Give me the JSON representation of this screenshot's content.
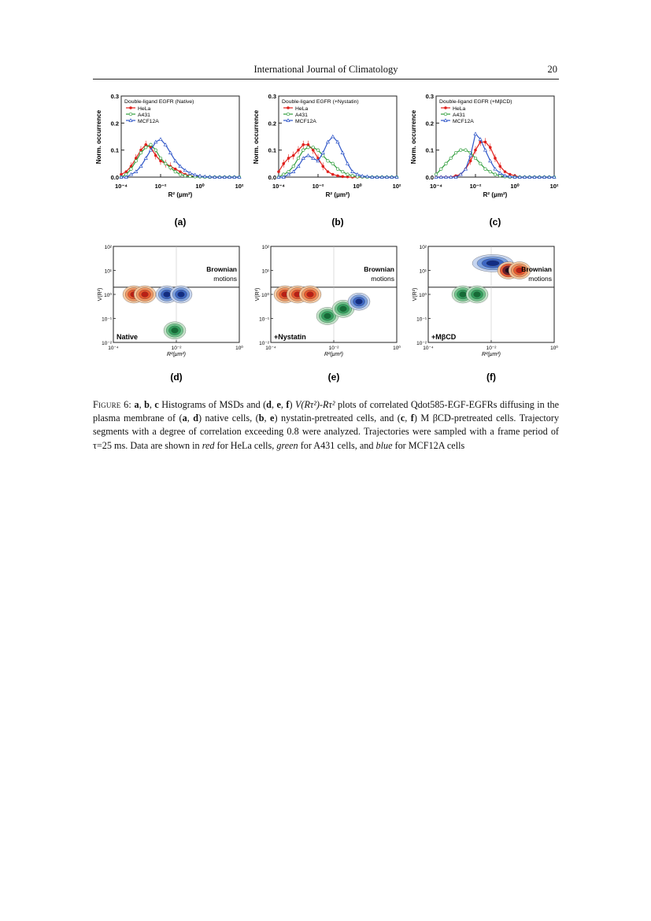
{
  "header": {
    "journal": "International Journal of Climatology",
    "page": "20"
  },
  "hist_panels": [
    {
      "id": "a",
      "label": "(a)",
      "legend_title": "Double-ligand EGFR (Native)"
    },
    {
      "id": "b",
      "label": "(b)",
      "legend_title": "Double-ligand EGFR (+Nystatin)"
    },
    {
      "id": "c",
      "label": "(c)",
      "legend_title": "Double-ligand EGFR (+MβCD)"
    }
  ],
  "hist_common": {
    "ylabel": "Norm. occurrence",
    "xlabel": "R² (μm²)",
    "yticks": [
      "0.0",
      "0.1",
      "0.2",
      "0.3"
    ],
    "xticks": [
      "10⁻⁴",
      "10⁻²",
      "10⁰",
      "10²"
    ],
    "legend": [
      "HeLa",
      "A431",
      "MCF12A"
    ],
    "colors": {
      "HeLa": "#e0201c",
      "A431": "#2e9d3a",
      "MCF12A": "#2f56c8"
    }
  },
  "dens_panels": [
    {
      "id": "d",
      "label": "(d)",
      "condition": "Native"
    },
    {
      "id": "e",
      "label": "(e)",
      "condition": "+Nystatin"
    },
    {
      "id": "f",
      "label": "(f)",
      "condition": "+MβCD"
    }
  ],
  "dens_common": {
    "annotation_line1": "Brownian",
    "annotation_line2": "motions",
    "ylabel": "V(R²)",
    "xlabel": "R²(μm²)",
    "yticks": [
      "10²",
      "10¹",
      "10⁰",
      "10⁻¹",
      "10⁻²"
    ],
    "xticks": [
      "10⁻⁴",
      "10⁻²",
      "10⁰"
    ]
  },
  "chart_data": [
    {
      "type": "line",
      "panel": "a",
      "title": "Double-ligand EGFR (Native)",
      "xlabel": "R² (μm²)",
      "ylabel": "Norm. occurrence",
      "xscale": "log",
      "xlim": [
        0.0001,
        100
      ],
      "ylim": [
        0,
        0.3
      ],
      "legend_position": "top-left",
      "x_log10": [
        -4,
        -3.75,
        -3.5,
        -3.25,
        -3,
        -2.75,
        -2.5,
        -2.25,
        -2,
        -1.75,
        -1.5,
        -1.25,
        -1,
        -0.75,
        -0.5,
        -0.25,
        0,
        0.25,
        0.5,
        0.75,
        1,
        1.25,
        1.5,
        1.75,
        2
      ],
      "series": [
        {
          "name": "HeLa",
          "values": [
            0.01,
            0.02,
            0.04,
            0.07,
            0.1,
            0.12,
            0.11,
            0.08,
            0.06,
            0.05,
            0.04,
            0.03,
            0.02,
            0.01,
            0.005,
            0.003,
            0.002,
            0.001,
            0,
            0,
            0,
            0,
            0,
            0,
            0
          ]
        },
        {
          "name": "A431",
          "values": [
            0.0,
            0.01,
            0.03,
            0.06,
            0.09,
            0.11,
            0.12,
            0.1,
            0.07,
            0.05,
            0.035,
            0.02,
            0.01,
            0.005,
            0.003,
            0.002,
            0.001,
            0,
            0,
            0,
            0,
            0,
            0,
            0,
            0
          ]
        },
        {
          "name": "MCF12A",
          "values": [
            0.0,
            0.0,
            0.01,
            0.02,
            0.04,
            0.07,
            0.1,
            0.13,
            0.14,
            0.12,
            0.09,
            0.06,
            0.04,
            0.025,
            0.015,
            0.008,
            0.004,
            0.002,
            0.001,
            0,
            0,
            0,
            0,
            0,
            0
          ]
        }
      ]
    },
    {
      "type": "line",
      "panel": "b",
      "title": "Double-ligand EGFR (+Nystatin)",
      "xlabel": "R² (μm²)",
      "ylabel": "Norm. occurrence",
      "xscale": "log",
      "xlim": [
        0.0001,
        100
      ],
      "ylim": [
        0,
        0.3
      ],
      "legend_position": "top-left",
      "x_log10": [
        -4,
        -3.75,
        -3.5,
        -3.25,
        -3,
        -2.75,
        -2.5,
        -2.25,
        -2,
        -1.75,
        -1.5,
        -1.25,
        -1,
        -0.75,
        -0.5,
        -0.25,
        0,
        0.25,
        0.5,
        0.75,
        1,
        1.25,
        1.5,
        1.75,
        2
      ],
      "series": [
        {
          "name": "HeLa",
          "values": [
            0.02,
            0.05,
            0.07,
            0.08,
            0.1,
            0.12,
            0.12,
            0.1,
            0.07,
            0.04,
            0.02,
            0.01,
            0.005,
            0.002,
            0.001,
            0,
            0,
            0,
            0,
            0,
            0,
            0,
            0,
            0,
            0
          ]
        },
        {
          "name": "A431",
          "values": [
            0.0,
            0.01,
            0.02,
            0.04,
            0.07,
            0.1,
            0.11,
            0.11,
            0.1,
            0.08,
            0.06,
            0.05,
            0.03,
            0.02,
            0.01,
            0.005,
            0.002,
            0.001,
            0,
            0,
            0,
            0,
            0,
            0,
            0
          ]
        },
        {
          "name": "MCF12A",
          "values": [
            0.0,
            0.0,
            0.01,
            0.02,
            0.04,
            0.07,
            0.08,
            0.07,
            0.06,
            0.09,
            0.13,
            0.15,
            0.13,
            0.09,
            0.05,
            0.02,
            0.01,
            0.004,
            0.002,
            0,
            0,
            0,
            0,
            0,
            0
          ]
        }
      ]
    },
    {
      "type": "line",
      "panel": "c",
      "title": "Double-ligand EGFR (+MβCD)",
      "xlabel": "R² (μm²)",
      "ylabel": "Norm. occurrence",
      "xscale": "log",
      "xlim": [
        0.0001,
        100
      ],
      "ylim": [
        0,
        0.3
      ],
      "legend_position": "top-left",
      "x_log10": [
        -4,
        -3.75,
        -3.5,
        -3.25,
        -3,
        -2.75,
        -2.5,
        -2.25,
        -2,
        -1.75,
        -1.5,
        -1.25,
        -1,
        -0.75,
        -0.5,
        -0.25,
        0,
        0.25,
        0.5,
        0.75,
        1,
        1.25,
        1.5,
        1.75,
        2
      ],
      "series": [
        {
          "name": "HeLa",
          "values": [
            0,
            0,
            0,
            0,
            0.005,
            0.01,
            0.03,
            0.06,
            0.1,
            0.13,
            0.13,
            0.11,
            0.07,
            0.04,
            0.02,
            0.01,
            0.005,
            0,
            0,
            0,
            0,
            0,
            0,
            0,
            0
          ]
        },
        {
          "name": "A431",
          "values": [
            0.01,
            0.03,
            0.05,
            0.07,
            0.09,
            0.1,
            0.1,
            0.09,
            0.07,
            0.05,
            0.03,
            0.02,
            0.01,
            0.005,
            0.002,
            0,
            0,
            0,
            0,
            0,
            0,
            0,
            0,
            0,
            0
          ]
        },
        {
          "name": "MCF12A",
          "values": [
            0,
            0,
            0,
            0,
            0,
            0.01,
            0.03,
            0.08,
            0.16,
            0.14,
            0.1,
            0.06,
            0.03,
            0.015,
            0.005,
            0.002,
            0,
            0,
            0,
            0,
            0,
            0,
            0,
            0,
            0
          ]
        }
      ]
    },
    {
      "type": "heatmap",
      "panel": "d",
      "xscale": "log",
      "yscale": "log",
      "xlabel": "R²(μm²)",
      "ylabel": "V(R²)",
      "xlim": [
        0.0001,
        1
      ],
      "ylim": [
        0.01,
        100
      ],
      "series": [
        {
          "name": "HeLa",
          "center_log10": [
            -3.0,
            0.0
          ]
        },
        {
          "name": "A431",
          "center_log10": [
            -2.0,
            -1.5
          ]
        },
        {
          "name": "MCF12A",
          "center_log10": [
            -2.0,
            0.0
          ]
        }
      ]
    },
    {
      "type": "heatmap",
      "panel": "e",
      "xscale": "log",
      "yscale": "log",
      "xlabel": "R²(μm²)",
      "ylabel": "V(R²)",
      "xlim": [
        0.0001,
        1
      ],
      "ylim": [
        0.01,
        100
      ],
      "series": [
        {
          "name": "HeLa",
          "center_log10": [
            -3.0,
            0.0
          ]
        },
        {
          "name": "A431",
          "center_log10": [
            -2.3,
            -0.8
          ]
        },
        {
          "name": "MCF12A",
          "center_log10": [
            -1.3,
            -0.3
          ]
        }
      ]
    },
    {
      "type": "heatmap",
      "panel": "f",
      "xscale": "log",
      "yscale": "log",
      "xlabel": "R²(μm²)",
      "ylabel": "V(R²)",
      "xlim": [
        0.0001,
        1
      ],
      "ylim": [
        0.01,
        100
      ],
      "series": [
        {
          "name": "HeLa",
          "center_log10": [
            -1.5,
            1.0
          ]
        },
        {
          "name": "A431",
          "center_log10": [
            -2.5,
            0.0
          ]
        },
        {
          "name": "MCF12A",
          "center_log10": [
            -1.7,
            1.2
          ]
        }
      ]
    }
  ],
  "caption": {
    "label": "Figure 6:",
    "t1": "Histograms of MSDs and (",
    "t2": ") ",
    "formula": "V(Rτ²)-Rτ²",
    "t3": " plots of correlated Qdot585-EGF-EGFRs diffusing in the plasma membrane of (",
    "t4": ") native cells, (",
    "t5": ") nystatin-pretreated cells, and (",
    "t6": ") M βCD-pretreated cells. Trajectory segments with a degree of correlation exceeding 0.8 were analyzed. Trajectories were sampled with a frame period of τ=25 ms. Data are shown in ",
    "red": "red",
    "t7": " for HeLa cells, ",
    "green": "green",
    "t8": " for A431 cells, and ",
    "blue": "blue",
    "t9": " for MCF12A cells",
    "refs": [
      "a",
      "b",
      "c",
      "d",
      "e",
      "f"
    ],
    "sep": ", "
  }
}
